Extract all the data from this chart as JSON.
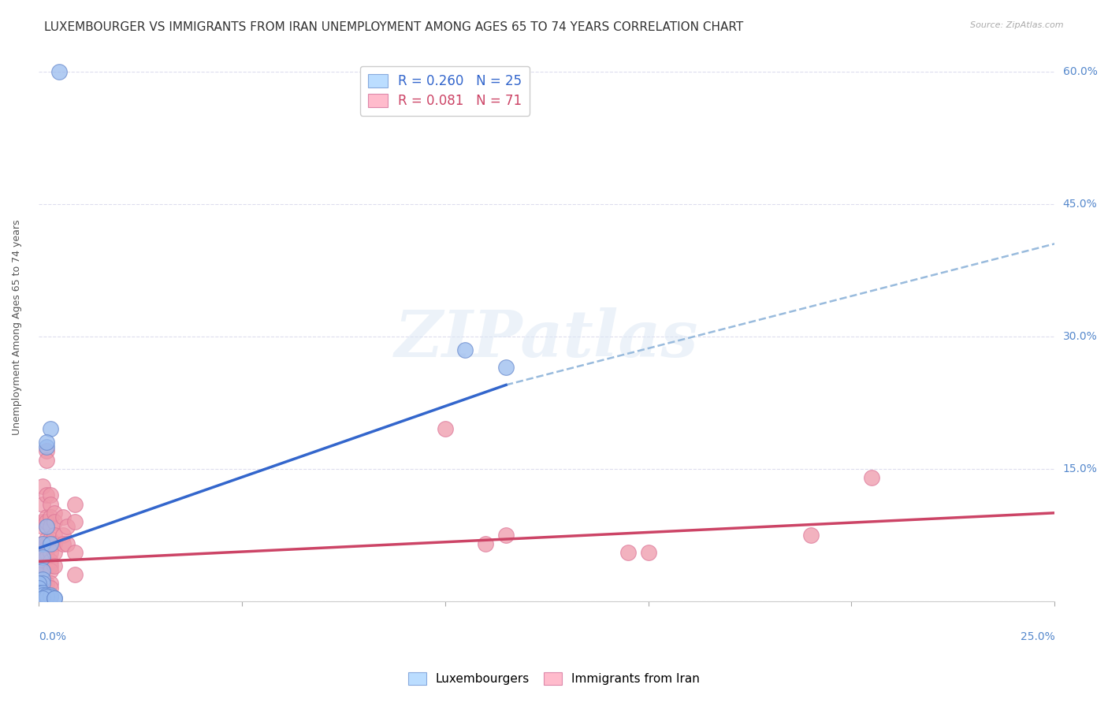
{
  "title": "LUXEMBOURGER VS IMMIGRANTS FROM IRAN UNEMPLOYMENT AMONG AGES 65 TO 74 YEARS CORRELATION CHART",
  "source": "Source: ZipAtlas.com",
  "ylabel": "Unemployment Among Ages 65 to 74 years",
  "ytick_vals": [
    0,
    0.15,
    0.3,
    0.45,
    0.6
  ],
  "ytick_labels": [
    "",
    "15.0%",
    "30.0%",
    "45.0%",
    "60.0%"
  ],
  "xlim": [
    0,
    0.25
  ],
  "ylim": [
    0,
    0.62
  ],
  "lux_color": "#99bbee",
  "iran_color": "#ee99aa",
  "lux_line_color": "#3366cc",
  "iran_line_color": "#cc4466",
  "dashed_line_color": "#99bbdd",
  "watermark_text": "ZIPatlas",
  "background_color": "#ffffff",
  "grid_color": "#ddddee",
  "title_fontsize": 11,
  "axis_label_fontsize": 9,
  "tick_fontsize": 10,
  "lux_line_x0": 0.0,
  "lux_line_y0": 0.06,
  "lux_line_x1": 0.115,
  "lux_line_y1": 0.245,
  "lux_line_xend": 0.25,
  "lux_line_yend": 0.405,
  "iran_line_x0": 0.0,
  "iran_line_y0": 0.045,
  "iran_line_x1": 0.25,
  "iran_line_y1": 0.1,
  "lux_points": [
    [
      0.005,
      0.6
    ],
    [
      0.003,
      0.195
    ],
    [
      0.002,
      0.175
    ],
    [
      0.105,
      0.285
    ],
    [
      0.115,
      0.265
    ],
    [
      0.002,
      0.085
    ],
    [
      0.001,
      0.065
    ],
    [
      0.003,
      0.065
    ],
    [
      0.001,
      0.05
    ],
    [
      0.002,
      0.18
    ],
    [
      0.001,
      0.035
    ],
    [
      0.001,
      0.025
    ],
    [
      0.001,
      0.02
    ],
    [
      0.0,
      0.02
    ],
    [
      0.0,
      0.015
    ],
    [
      0.0,
      0.01
    ],
    [
      0.001,
      0.01
    ],
    [
      0.001,
      0.007
    ],
    [
      0.002,
      0.007
    ],
    [
      0.003,
      0.007
    ],
    [
      0.003,
      0.005
    ],
    [
      0.002,
      0.005
    ],
    [
      0.001,
      0.003
    ],
    [
      0.004,
      0.003
    ],
    [
      0.004,
      0.003
    ]
  ],
  "iran_points": [
    [
      0.0,
      0.055
    ],
    [
      0.0,
      0.05
    ],
    [
      0.0,
      0.045
    ],
    [
      0.0,
      0.04
    ],
    [
      0.0,
      0.035
    ],
    [
      0.0,
      0.03
    ],
    [
      0.0,
      0.025
    ],
    [
      0.0,
      0.025
    ],
    [
      0.0,
      0.02
    ],
    [
      0.0,
      0.02
    ],
    [
      0.0,
      0.015
    ],
    [
      0.0,
      0.012
    ],
    [
      0.0,
      0.01
    ],
    [
      0.0,
      0.008
    ],
    [
      0.0,
      0.007
    ],
    [
      0.0,
      0.005
    ],
    [
      0.0,
      0.005
    ],
    [
      0.001,
      0.13
    ],
    [
      0.001,
      0.11
    ],
    [
      0.001,
      0.09
    ],
    [
      0.001,
      0.085
    ],
    [
      0.001,
      0.065
    ],
    [
      0.001,
      0.06
    ],
    [
      0.001,
      0.055
    ],
    [
      0.002,
      0.17
    ],
    [
      0.002,
      0.16
    ],
    [
      0.002,
      0.12
    ],
    [
      0.002,
      0.095
    ],
    [
      0.002,
      0.09
    ],
    [
      0.002,
      0.07
    ],
    [
      0.002,
      0.065
    ],
    [
      0.002,
      0.06
    ],
    [
      0.002,
      0.055
    ],
    [
      0.002,
      0.05
    ],
    [
      0.002,
      0.02
    ],
    [
      0.003,
      0.12
    ],
    [
      0.003,
      0.11
    ],
    [
      0.003,
      0.095
    ],
    [
      0.003,
      0.085
    ],
    [
      0.003,
      0.07
    ],
    [
      0.003,
      0.065
    ],
    [
      0.003,
      0.055
    ],
    [
      0.003,
      0.045
    ],
    [
      0.003,
      0.04
    ],
    [
      0.003,
      0.035
    ],
    [
      0.003,
      0.02
    ],
    [
      0.003,
      0.015
    ],
    [
      0.003,
      0.005
    ],
    [
      0.004,
      0.1
    ],
    [
      0.004,
      0.09
    ],
    [
      0.004,
      0.075
    ],
    [
      0.004,
      0.065
    ],
    [
      0.004,
      0.055
    ],
    [
      0.004,
      0.04
    ],
    [
      0.006,
      0.095
    ],
    [
      0.006,
      0.075
    ],
    [
      0.006,
      0.065
    ],
    [
      0.007,
      0.085
    ],
    [
      0.007,
      0.065
    ],
    [
      0.009,
      0.11
    ],
    [
      0.009,
      0.09
    ],
    [
      0.009,
      0.055
    ],
    [
      0.009,
      0.03
    ],
    [
      0.1,
      0.195
    ],
    [
      0.11,
      0.065
    ],
    [
      0.115,
      0.075
    ],
    [
      0.145,
      0.055
    ],
    [
      0.15,
      0.055
    ],
    [
      0.19,
      0.075
    ],
    [
      0.205,
      0.14
    ]
  ]
}
